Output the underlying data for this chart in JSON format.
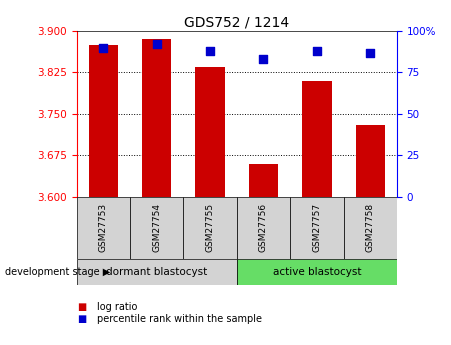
{
  "title": "GDS752 / 1214",
  "samples": [
    "GSM27753",
    "GSM27754",
    "GSM27755",
    "GSM27756",
    "GSM27757",
    "GSM27758"
  ],
  "log_ratios": [
    3.875,
    3.885,
    3.835,
    3.66,
    3.81,
    3.73
  ],
  "percentile_ranks": [
    90,
    92,
    88,
    83,
    88,
    87
  ],
  "baseline": 3.6,
  "ylim_left": [
    3.6,
    3.9
  ],
  "ylim_right": [
    0,
    100
  ],
  "yticks_left": [
    3.6,
    3.675,
    3.75,
    3.825,
    3.9
  ],
  "yticks_right": [
    0,
    25,
    50,
    75,
    100
  ],
  "ytick_labels_right": [
    "0",
    "25",
    "50",
    "75",
    "100%"
  ],
  "bar_color": "#cc0000",
  "square_color": "#0000cc",
  "group1_label": "dormant blastocyst",
  "group2_label": "active blastocyst",
  "group1_color": "#d3d3d3",
  "group2_color": "#66dd66",
  "dev_stage_label": "development stage",
  "legend_bar": "log ratio",
  "legend_sq": "percentile rank within the sample",
  "bar_width": 0.55,
  "group1_indices": [
    0,
    1,
    2
  ],
  "group2_indices": [
    3,
    4,
    5
  ]
}
